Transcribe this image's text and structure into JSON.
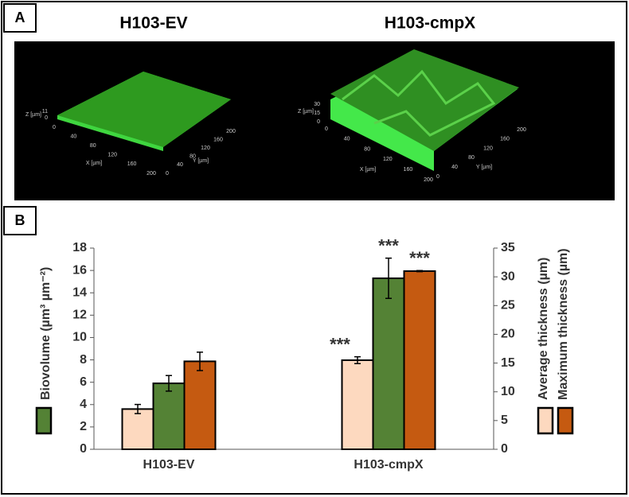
{
  "panel_a": {
    "label": "A",
    "images": [
      {
        "title": "H103-EV",
        "z_label": "Z [µm]",
        "x_label": "X [µm]",
        "y_label": "Y [µm]",
        "z_ticks": [
          "11",
          "0"
        ],
        "x_ticks": [
          "0",
          "40",
          "80",
          "120",
          "160",
          "200"
        ],
        "y_ticks": [
          "0",
          "40",
          "80",
          "120",
          "160",
          "200"
        ]
      },
      {
        "title": "H103-cmpX",
        "z_label": "Z [µm]",
        "x_label": "X [µm]",
        "y_label": "Y [µm]",
        "z_ticks": [
          "30",
          "15",
          "0"
        ],
        "x_ticks": [
          "0",
          "40",
          "80",
          "120",
          "160",
          "200"
        ],
        "y_ticks": [
          "0",
          "40",
          "80",
          "120",
          "160",
          "200"
        ]
      }
    ]
  },
  "chart_data": {
    "type": "bar",
    "label": "B",
    "categories": [
      "H103-EV",
      "H103-cmpX"
    ],
    "series": [
      {
        "name": "Average thickness (µm)",
        "color": "#fdd9bf",
        "axis": "y2",
        "values": [
          7.0,
          15.5
        ],
        "error": [
          0.8,
          0.6
        ],
        "significance": [
          null,
          "***"
        ]
      },
      {
        "name": "Biovolume (µm³ µm⁻²)",
        "color": "#548235",
        "values": [
          5.9,
          15.3
        ],
        "error": [
          0.7,
          1.8
        ],
        "significance": [
          null,
          "***"
        ]
      },
      {
        "name": "Maximum thickness (µm)",
        "color": "#c55a11",
        "axis": "y2",
        "values": [
          15.3,
          31.0
        ],
        "error": [
          1.6,
          0.1
        ],
        "significance": [
          null,
          "***"
        ]
      }
    ],
    "ylim": [
      0,
      18
    ],
    "yticks": [
      0,
      2,
      4,
      6,
      8,
      10,
      12,
      14,
      16,
      18
    ],
    "y2lim": [
      0,
      35
    ],
    "y2ticks": [
      0,
      5,
      10,
      15,
      20,
      25,
      30,
      35
    ]
  }
}
